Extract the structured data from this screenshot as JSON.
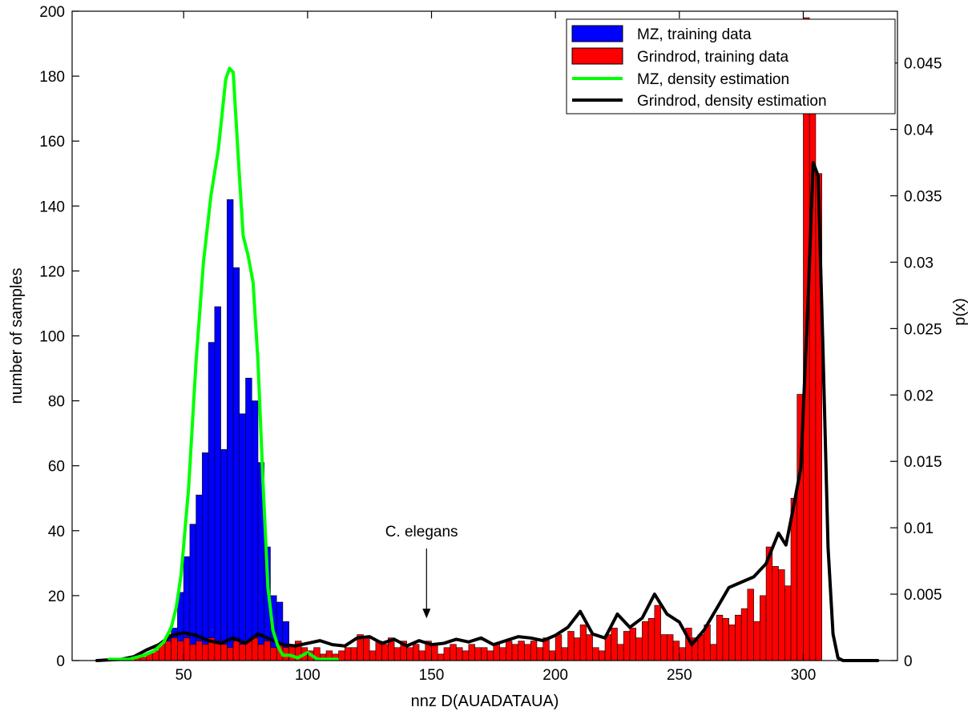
{
  "chart_data": {
    "type": "bar",
    "title": "",
    "xlabel": "nnz D(AUADATAUA)",
    "ylabel_left": "number of samples",
    "ylabel_right": "p(x)",
    "xlim": [
      5,
      338
    ],
    "ylim_left": [
      0,
      200
    ],
    "ylim_right": [
      0,
      0.0489
    ],
    "xticks": [
      50,
      100,
      150,
      200,
      250,
      300
    ],
    "yticks_left": [
      0,
      20,
      40,
      60,
      80,
      100,
      120,
      140,
      160,
      180,
      200
    ],
    "yticks_right": [
      0,
      0.005,
      0.01,
      0.015,
      0.02,
      0.025,
      0.03,
      0.035,
      0.04,
      0.045
    ],
    "ytick_labels_right": [
      "0",
      "0.005",
      "0.01",
      "0.015",
      "0.02",
      "0.025",
      "0.03",
      "0.035",
      "0.04",
      "0.045"
    ],
    "grid": false,
    "legend_position": "top-right",
    "bin_width": 2.5,
    "annotation": {
      "text": "C. elegans",
      "x": 148,
      "y": 13
    },
    "series": [
      {
        "name": "MZ, training data",
        "kind": "bar",
        "axis": "left",
        "color": "#0000ff",
        "x": [
          36.25,
          38.75,
          41.25,
          43.75,
          46.25,
          48.75,
          51.25,
          53.75,
          56.25,
          58.75,
          61.25,
          63.75,
          66.25,
          68.75,
          71.25,
          73.75,
          76.25,
          78.75,
          81.25,
          83.75,
          86.25,
          88.75,
          91.25
        ],
        "values": [
          1,
          2,
          4,
          7,
          10,
          21,
          32,
          42,
          51,
          64,
          98,
          109,
          65,
          142,
          121,
          76,
          87,
          80,
          61,
          35,
          20,
          18,
          12
        ]
      },
      {
        "name": "Grindrod, training data",
        "kind": "bar",
        "axis": "left",
        "color": "#ff0000",
        "x": [
          31.25,
          33.75,
          36.25,
          38.75,
          41.25,
          43.75,
          46.25,
          48.75,
          51.25,
          53.75,
          56.25,
          58.75,
          61.25,
          63.75,
          66.25,
          68.75,
          71.25,
          73.75,
          76.25,
          78.75,
          81.25,
          83.75,
          86.25,
          88.75,
          91.25,
          93.75,
          96.25,
          98.75,
          101.25,
          103.75,
          106.25,
          108.75,
          111.25,
          113.75,
          116.25,
          118.75,
          121.25,
          123.75,
          126.25,
          128.75,
          131.25,
          133.75,
          136.25,
          138.75,
          141.25,
          143.75,
          146.25,
          148.75,
          151.25,
          153.75,
          156.25,
          158.75,
          161.25,
          163.75,
          166.25,
          168.75,
          171.25,
          173.75,
          176.25,
          178.75,
          181.25,
          183.75,
          186.25,
          188.75,
          191.25,
          193.75,
          196.25,
          198.75,
          201.25,
          203.75,
          206.25,
          208.75,
          211.25,
          213.75,
          216.25,
          218.75,
          221.25,
          223.75,
          226.25,
          228.75,
          231.25,
          233.75,
          236.25,
          238.75,
          241.25,
          243.75,
          246.25,
          248.75,
          251.25,
          253.75,
          256.25,
          258.75,
          261.25,
          263.75,
          266.25,
          268.75,
          271.25,
          273.75,
          276.25,
          278.75,
          281.25,
          283.75,
          286.25,
          288.75,
          291.25,
          293.75,
          296.25,
          298.75,
          301.25,
          303.75,
          306.25
        ],
        "values": [
          1,
          1,
          2,
          3,
          5,
          6,
          7,
          6,
          7,
          5,
          6,
          5,
          7,
          6,
          5,
          4,
          6,
          5,
          6,
          7,
          5,
          6,
          4,
          5,
          4,
          5,
          6,
          4,
          3,
          4,
          2,
          3,
          2,
          3,
          4,
          4,
          8,
          7,
          3,
          6,
          5,
          7,
          4,
          6,
          4,
          5,
          3,
          6,
          5,
          2,
          4,
          5,
          4,
          3,
          5,
          4,
          4,
          3,
          5,
          4,
          6,
          5,
          6,
          5,
          6,
          4,
          7,
          3,
          8,
          4,
          9,
          7,
          11,
          8,
          4,
          3,
          8,
          10,
          5,
          9,
          10,
          7,
          12,
          13,
          17,
          8,
          8,
          6,
          4,
          10,
          7,
          8,
          11,
          5,
          14,
          13,
          11,
          14,
          16,
          22,
          12,
          20,
          35,
          29,
          28,
          23,
          50,
          82,
          198,
          170,
          150
        ]
      },
      {
        "name": "MZ, density estimation",
        "kind": "line",
        "axis": "right",
        "color": "#00ff00",
        "x": [
          20,
          28,
          34,
          38,
          42,
          45,
          47,
          49,
          52,
          55,
          58,
          61,
          64,
          67,
          68.5,
          70,
          72,
          74,
          76,
          78,
          80,
          82,
          84,
          86,
          88,
          90,
          93,
          96,
          100,
          104,
          108,
          112
        ],
        "values": [
          0.0001,
          0.0001,
          0.0004,
          0.0007,
          0.0014,
          0.0025,
          0.004,
          0.0065,
          0.013,
          0.0225,
          0.03,
          0.035,
          0.0385,
          0.0438,
          0.0446,
          0.0443,
          0.038,
          0.032,
          0.0305,
          0.0285,
          0.0225,
          0.0135,
          0.0055,
          0.0023,
          0.0011,
          0.0004,
          0.0004,
          0.0002,
          0.0006,
          0.0001,
          0.0001,
          0.0001
        ]
      },
      {
        "name": "Grindrod, density estimation",
        "kind": "line",
        "axis": "right",
        "color": "#000000",
        "x": [
          15,
          25,
          30,
          35,
          40,
          45,
          50,
          55,
          60,
          65,
          70,
          75,
          80,
          85,
          90,
          95,
          100,
          105,
          110,
          115,
          120,
          125,
          130,
          135,
          140,
          145,
          150,
          155,
          160,
          165,
          170,
          175,
          180,
          185,
          190,
          195,
          200,
          205,
          210,
          215,
          220,
          225,
          230,
          235,
          240,
          245,
          250,
          255,
          260,
          265,
          270,
          275,
          280,
          285,
          290,
          293,
          296,
          299,
          302,
          304,
          306,
          308,
          310,
          312,
          314,
          316,
          320,
          330
        ],
        "values": [
          0,
          0.0001,
          0.0003,
          0.0008,
          0.0012,
          0.0019,
          0.0021,
          0.0019,
          0.0015,
          0.0013,
          0.0017,
          0.0013,
          0.002,
          0.0016,
          0.0012,
          0.0011,
          0.0013,
          0.0015,
          0.0012,
          0.0011,
          0.0017,
          0.0018,
          0.0013,
          0.0016,
          0.0011,
          0.0015,
          0.0012,
          0.0013,
          0.0016,
          0.0014,
          0.0017,
          0.0012,
          0.0015,
          0.0018,
          0.0017,
          0.0015,
          0.0019,
          0.0025,
          0.0037,
          0.002,
          0.0017,
          0.0035,
          0.0025,
          0.0032,
          0.005,
          0.0035,
          0.0029,
          0.0012,
          0.0023,
          0.0039,
          0.0055,
          0.0059,
          0.0063,
          0.0073,
          0.0096,
          0.0087,
          0.0115,
          0.0145,
          0.0275,
          0.0375,
          0.0365,
          0.023,
          0.0085,
          0.002,
          0.0002,
          0,
          0,
          0
        ]
      }
    ]
  }
}
